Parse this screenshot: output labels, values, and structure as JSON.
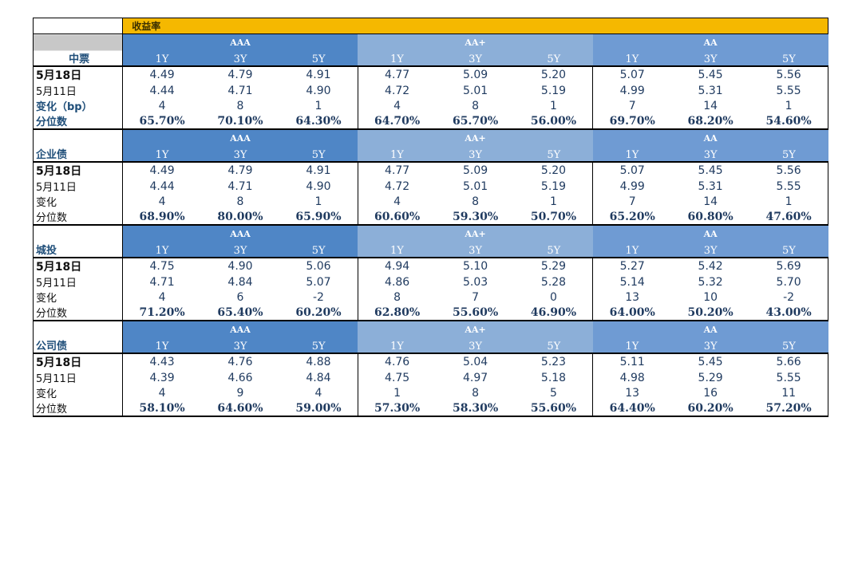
{
  "title": "收益率",
  "grades": [
    "AAA",
    "AA+",
    "AA"
  ],
  "tenors": [
    "1Y",
    "3Y",
    "5Y"
  ],
  "sections": [
    {
      "name": "中票",
      "rows": [
        {
          "label": "5月18日",
          "values": [
            "4.49",
            "4.79",
            "4.91",
            "4.77",
            "5.09",
            "5.20",
            "5.07",
            "5.45",
            "5.56"
          ]
        },
        {
          "label": "5月11日",
          "values": [
            "4.44",
            "4.71",
            "4.90",
            "4.72",
            "5.01",
            "5.19",
            "4.99",
            "5.31",
            "5.55"
          ]
        },
        {
          "label": "变化（bp）",
          "values": [
            "4",
            "8",
            "1",
            "4",
            "8",
            "1",
            "7",
            "14",
            "1"
          ]
        },
        {
          "label": "分位数",
          "values": [
            "65.70%",
            "70.10%",
            "64.30%",
            "64.70%",
            "65.70%",
            "56.00%",
            "69.70%",
            "68.20%",
            "54.60%"
          ]
        }
      ]
    },
    {
      "name": "企业债",
      "rows": [
        {
          "label": "5月18日",
          "values": [
            "4.49",
            "4.79",
            "4.91",
            "4.77",
            "5.09",
            "5.20",
            "5.07",
            "5.45",
            "5.56"
          ]
        },
        {
          "label": "5月11日",
          "values": [
            "4.44",
            "4.71",
            "4.90",
            "4.72",
            "5.01",
            "5.19",
            "4.99",
            "5.31",
            "5.55"
          ]
        },
        {
          "label": "变化",
          "values": [
            "4",
            "8",
            "1",
            "4",
            "8",
            "1",
            "7",
            "14",
            "1"
          ]
        },
        {
          "label": "分位数",
          "values": [
            "68.90%",
            "80.00%",
            "65.90%",
            "60.60%",
            "59.30%",
            "50.70%",
            "65.20%",
            "60.80%",
            "47.60%"
          ]
        }
      ]
    },
    {
      "name": "城投",
      "rows": [
        {
          "label": "5月18日",
          "values": [
            "4.75",
            "4.90",
            "5.06",
            "4.94",
            "5.10",
            "5.29",
            "5.27",
            "5.42",
            "5.69"
          ]
        },
        {
          "label": "5月11日",
          "values": [
            "4.71",
            "4.84",
            "5.07",
            "4.86",
            "5.03",
            "5.28",
            "5.14",
            "5.32",
            "5.70"
          ]
        },
        {
          "label": "变化",
          "values": [
            "4",
            "6",
            "-2",
            "8",
            "7",
            "0",
            "13",
            "10",
            "-2"
          ]
        },
        {
          "label": "分位数",
          "values": [
            "71.20%",
            "65.40%",
            "60.20%",
            "62.80%",
            "55.60%",
            "46.90%",
            "64.00%",
            "50.20%",
            "43.00%"
          ]
        }
      ]
    },
    {
      "name": "公司债",
      "rows": [
        {
          "label": "5月18日",
          "values": [
            "4.43",
            "4.76",
            "4.88",
            "4.76",
            "5.04",
            "5.23",
            "5.11",
            "5.45",
            "5.66"
          ]
        },
        {
          "label": "5月11日",
          "values": [
            "4.39",
            "4.66",
            "4.84",
            "4.75",
            "4.97",
            "5.18",
            "4.98",
            "5.29",
            "5.55"
          ]
        },
        {
          "label": "变化",
          "values": [
            "4",
            "9",
            "4",
            "1",
            "8",
            "5",
            "13",
            "16",
            "11"
          ]
        },
        {
          "label": "分位数",
          "values": [
            "58.10%",
            "64.60%",
            "59.00%",
            "57.30%",
            "58.30%",
            "55.60%",
            "64.40%",
            "60.20%",
            "57.20%"
          ]
        }
      ]
    }
  ],
  "colors": {
    "title_bg": "#f5b800",
    "aaa_header": "#4f86c6",
    "aa_plus_header": "#8cafd8",
    "aa_header": "#6f9bd3"
  }
}
